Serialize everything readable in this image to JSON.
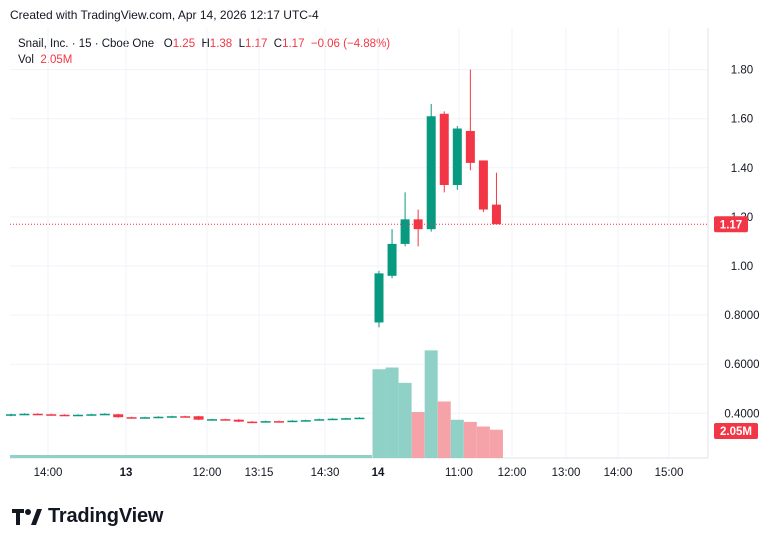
{
  "header": {
    "created_text": "Created with TradingView.com, Apr 14, 2026 12:17 UTC-4"
  },
  "legend": {
    "symbol": "Snail, Inc. · 15 · Cboe One",
    "open_label": "O",
    "open": "1.25",
    "high_label": "H",
    "high": "1.38",
    "low_label": "L",
    "low": "1.17",
    "close_label": "C",
    "close": "1.17",
    "change": "−0.06 (−4.88%)",
    "vol_label": "Vol",
    "vol": "2.05M"
  },
  "colors": {
    "up": "#089981",
    "down": "#f23645",
    "up_vol": "#8fd1c6",
    "down_vol": "#f5a3a9",
    "grid": "#f0f3fa",
    "axis_text": "#131722"
  },
  "brand": {
    "name": "TradingView",
    "icon": "tradingview-logo-icon"
  },
  "chart_data": {
    "type": "candlestick",
    "price_axis": {
      "ticks": [
        "0.4000",
        "0.6000",
        "0.8000",
        "1.00",
        "1.20",
        "1.40",
        "1.60",
        "1.80"
      ],
      "tick_values": [
        0.4,
        0.6,
        0.8,
        1.0,
        1.2,
        1.4,
        1.6,
        1.8
      ],
      "range": [
        0.22,
        1.94
      ]
    },
    "time_axis": {
      "ticks": [
        "14:00",
        "13",
        "12:00",
        "13:15",
        "14:30",
        "14",
        "11:00",
        "12:00",
        "13:00",
        "14:00",
        "15:00"
      ]
    },
    "last_price": {
      "value": 1.17,
      "label": "1.17"
    },
    "last_volume": {
      "label": "2.05M"
    },
    "pre_candles": [
      {
        "o": 0.39,
        "c": 0.396,
        "h": 0.398,
        "l": 0.388,
        "up": true
      },
      {
        "o": 0.396,
        "c": 0.398,
        "h": 0.4,
        "l": 0.394,
        "up": true
      },
      {
        "o": 0.398,
        "c": 0.396,
        "h": 0.4,
        "l": 0.394,
        "up": false
      },
      {
        "o": 0.396,
        "c": 0.394,
        "h": 0.398,
        "l": 0.392,
        "up": false
      },
      {
        "o": 0.394,
        "c": 0.392,
        "h": 0.396,
        "l": 0.39,
        "up": false
      },
      {
        "o": 0.392,
        "c": 0.394,
        "h": 0.396,
        "l": 0.39,
        "up": true
      },
      {
        "o": 0.394,
        "c": 0.396,
        "h": 0.398,
        "l": 0.392,
        "up": true
      },
      {
        "o": 0.396,
        "c": 0.398,
        "h": 0.4,
        "l": 0.394,
        "up": true
      },
      {
        "o": 0.396,
        "c": 0.384,
        "h": 0.398,
        "l": 0.382,
        "up": false
      },
      {
        "o": 0.384,
        "c": 0.382,
        "h": 0.386,
        "l": 0.38,
        "up": false
      },
      {
        "o": 0.382,
        "c": 0.384,
        "h": 0.386,
        "l": 0.38,
        "up": true
      },
      {
        "o": 0.384,
        "c": 0.386,
        "h": 0.388,
        "l": 0.382,
        "up": true
      },
      {
        "o": 0.386,
        "c": 0.388,
        "h": 0.39,
        "l": 0.384,
        "up": true
      },
      {
        "o": 0.388,
        "c": 0.386,
        "h": 0.39,
        "l": 0.384,
        "up": false
      },
      {
        "o": 0.388,
        "c": 0.374,
        "h": 0.39,
        "l": 0.372,
        "up": false
      },
      {
        "o": 0.374,
        "c": 0.376,
        "h": 0.378,
        "l": 0.372,
        "up": true
      },
      {
        "o": 0.376,
        "c": 0.374,
        "h": 0.378,
        "l": 0.372,
        "up": false
      },
      {
        "o": 0.374,
        "c": 0.366,
        "h": 0.376,
        "l": 0.364,
        "up": false
      },
      {
        "o": 0.366,
        "c": 0.364,
        "h": 0.368,
        "l": 0.362,
        "up": false
      },
      {
        "o": 0.366,
        "c": 0.368,
        "h": 0.37,
        "l": 0.364,
        "up": true
      },
      {
        "o": 0.368,
        "c": 0.366,
        "h": 0.37,
        "l": 0.364,
        "up": false
      },
      {
        "o": 0.366,
        "c": 0.37,
        "h": 0.372,
        "l": 0.364,
        "up": true
      },
      {
        "o": 0.37,
        "c": 0.372,
        "h": 0.374,
        "l": 0.368,
        "up": true
      },
      {
        "o": 0.372,
        "c": 0.376,
        "h": 0.378,
        "l": 0.37,
        "up": true
      },
      {
        "o": 0.376,
        "c": 0.378,
        "h": 0.38,
        "l": 0.374,
        "up": true
      },
      {
        "o": 0.378,
        "c": 0.38,
        "h": 0.382,
        "l": 0.376,
        "up": true
      },
      {
        "o": 0.38,
        "c": 0.382,
        "h": 0.384,
        "l": 0.378,
        "up": true
      }
    ],
    "candles": [
      {
        "o": 0.77,
        "c": 0.97,
        "h": 0.98,
        "l": 0.75
      },
      {
        "o": 0.96,
        "c": 1.09,
        "h": 1.15,
        "l": 0.95
      },
      {
        "o": 1.09,
        "c": 1.19,
        "h": 1.3,
        "l": 1.08
      },
      {
        "o": 1.19,
        "c": 1.15,
        "h": 1.23,
        "l": 1.08
      },
      {
        "o": 1.15,
        "c": 1.61,
        "h": 1.66,
        "l": 1.14
      },
      {
        "o": 1.62,
        "c": 1.33,
        "h": 1.63,
        "l": 1.3
      },
      {
        "o": 1.33,
        "c": 1.56,
        "h": 1.57,
        "l": 1.31
      },
      {
        "o": 1.55,
        "c": 1.42,
        "h": 1.8,
        "l": 1.39
      },
      {
        "o": 1.43,
        "c": 1.23,
        "h": 1.43,
        "l": 1.22
      },
      {
        "o": 1.25,
        "c": 1.17,
        "h": 1.38,
        "l": 1.17
      }
    ],
    "volumes": [
      {
        "v": 0.5795,
        "up": true
      },
      {
        "v": 0.5865,
        "up": true
      },
      {
        "v": 0.524,
        "up": true
      },
      {
        "v": 0.4053,
        "up": false
      },
      {
        "v": 0.6563,
        "up": true
      },
      {
        "v": 0.448,
        "up": false
      },
      {
        "v": 0.3737,
        "up": true
      },
      {
        "v": 0.365,
        "up": false
      },
      {
        "v": 0.3463,
        "up": false
      },
      {
        "v": 0.333,
        "up": false
      }
    ]
  }
}
